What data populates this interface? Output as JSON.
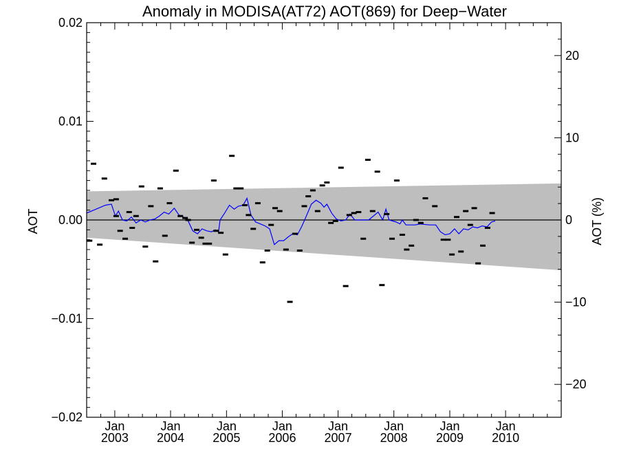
{
  "chart_data": {
    "type": "scatter",
    "title": "Anomaly in MODISA(AT72) AOT(869) for Deep−Water",
    "ylabel": "AOT",
    "ylabel_right": "AOT (%)",
    "xlabel": "",
    "x_range": [
      "2002-07-01",
      "2010-12-31"
    ],
    "ylim": [
      -0.02,
      0.02
    ],
    "ylim_right": [
      -24,
      24
    ],
    "y_ticks": [
      {
        "value": 0.02,
        "label": "0.02"
      },
      {
        "value": 0.01,
        "label": "0.01"
      },
      {
        "value": 0.0,
        "label": "0.00"
      },
      {
        "value": -0.01,
        "label": "−0.01"
      },
      {
        "value": -0.02,
        "label": "−0.02"
      }
    ],
    "y_ticks_right": [
      {
        "value": 20,
        "label": "20"
      },
      {
        "value": 10,
        "label": "10"
      },
      {
        "value": 0,
        "label": "0"
      },
      {
        "value": -10,
        "label": "−10"
      },
      {
        "value": -20,
        "label": "−20"
      }
    ],
    "x_ticks": [
      {
        "date": "2003-01-01",
        "month": "Jan",
        "year": "2003"
      },
      {
        "date": "2004-01-01",
        "month": "Jan",
        "year": "2004"
      },
      {
        "date": "2005-01-01",
        "month": "Jan",
        "year": "2005"
      },
      {
        "date": "2006-01-01",
        "month": "Jan",
        "year": "2006"
      },
      {
        "date": "2007-01-01",
        "month": "Jan",
        "year": "2007"
      },
      {
        "date": "2008-01-01",
        "month": "Jan",
        "year": "2008"
      },
      {
        "date": "2009-01-01",
        "month": "Jan",
        "year": "2009"
      },
      {
        "date": "2010-01-01",
        "month": "Jan",
        "year": "2010"
      }
    ],
    "band": {
      "color": "#bebebe",
      "upper": [
        [
          "2002-07-01",
          0.0029
        ],
        [
          "2010-12-31",
          0.0037
        ]
      ],
      "lower": [
        [
          "2002-07-01",
          -0.0018
        ],
        [
          "2010-12-31",
          -0.0051
        ]
      ]
    },
    "reference_line": {
      "y": 0.0,
      "color": "#000000"
    },
    "points_color": "#000000",
    "points": [
      [
        "2002-07-20",
        -0.0021
      ],
      [
        "2002-08-15",
        0.0057
      ],
      [
        "2002-09-25",
        -0.0025
      ],
      [
        "2002-10-25",
        0.0042
      ],
      [
        "2002-12-10",
        0.002
      ],
      [
        "2003-01-10",
        0.0021
      ],
      [
        "2003-01-10",
        0.0004
      ],
      [
        "2003-02-05",
        -0.0011
      ],
      [
        "2003-03-10",
        -0.0019
      ],
      [
        "2003-04-05",
        0.0008
      ],
      [
        "2003-04-25",
        -0.0008
      ],
      [
        "2003-05-20",
        0.0004
      ],
      [
        "2003-06-25",
        0.0034
      ],
      [
        "2003-07-20",
        -0.0027
      ],
      [
        "2003-08-25",
        0.0014
      ],
      [
        "2003-09-25",
        -0.0042
      ],
      [
        "2003-10-25",
        0.0032
      ],
      [
        "2003-11-25",
        -0.0016
      ],
      [
        "2003-12-25",
        0.0017
      ],
      [
        "2004-02-05",
        0.005
      ],
      [
        "2004-03-05",
        0.0004
      ],
      [
        "2004-04-05",
        0.0002
      ],
      [
        "2004-04-25",
        0.0
      ],
      [
        "2004-05-20",
        -0.0023
      ],
      [
        "2004-06-20",
        -0.001
      ],
      [
        "2004-07-20",
        -0.0018
      ],
      [
        "2004-08-15",
        -0.0024
      ],
      [
        "2004-09-10",
        -0.0024
      ],
      [
        "2004-10-10",
        0.004
      ],
      [
        "2004-10-25",
        -0.0011
      ],
      [
        "2004-11-25",
        -0.0013
      ],
      [
        "2004-12-25",
        -0.0035
      ],
      [
        "2005-02-05",
        0.0065
      ],
      [
        "2005-03-05",
        0.0032
      ],
      [
        "2005-04-05",
        0.0032
      ],
      [
        "2005-05-01",
        0.0015
      ],
      [
        "2005-05-25",
        0.0005
      ],
      [
        "2005-06-25",
        -0.0009
      ],
      [
        "2005-07-25",
        0.0017
      ],
      [
        "2005-08-25",
        -0.0043
      ],
      [
        "2005-09-25",
        -0.0031
      ],
      [
        "2005-10-20",
        -0.0005
      ],
      [
        "2005-11-15",
        0.0012
      ],
      [
        "2005-12-15",
        0.0009
      ],
      [
        "2006-01-25",
        -0.003
      ],
      [
        "2006-02-20",
        -0.0083
      ],
      [
        "2006-03-25",
        -0.0014
      ],
      [
        "2006-04-25",
        -0.0031
      ],
      [
        "2006-05-25",
        0.0014
      ],
      [
        "2006-06-20",
        0.0024
      ],
      [
        "2006-07-20",
        0.003
      ],
      [
        "2006-08-20",
        0.0009
      ],
      [
        "2006-09-20",
        0.0035
      ],
      [
        "2006-10-20",
        0.0038
      ],
      [
        "2006-11-15",
        -0.0003
      ],
      [
        "2006-12-15",
        -0.0001
      ],
      [
        "2007-01-20",
        0.0053
      ],
      [
        "2007-02-20",
        -0.0067
      ],
      [
        "2007-03-15",
        0.0005
      ],
      [
        "2007-04-15",
        0.0007
      ],
      [
        "2007-05-15",
        0.0008
      ],
      [
        "2007-06-15",
        -0.0019
      ],
      [
        "2007-07-15",
        0.0061
      ],
      [
        "2007-08-15",
        0.0009
      ],
      [
        "2007-09-15",
        0.0049
      ],
      [
        "2007-10-15",
        -0.0066
      ],
      [
        "2007-11-15",
        0.0006
      ],
      [
        "2007-12-20",
        -0.0019
      ],
      [
        "2008-01-20",
        0.004
      ],
      [
        "2008-02-25",
        -0.0015
      ],
      [
        "2008-03-25",
        -0.003
      ],
      [
        "2008-04-25",
        -0.0026
      ],
      [
        "2008-05-25",
        0.0
      ],
      [
        "2008-06-25",
        -0.0003
      ],
      [
        "2008-07-25",
        0.0022
      ],
      [
        "2008-09-25",
        0.0014
      ],
      [
        "2008-11-20",
        -0.002
      ],
      [
        "2008-12-20",
        -0.002
      ],
      [
        "2009-01-15",
        -0.0035
      ],
      [
        "2009-02-15",
        0.0003
      ],
      [
        "2009-03-15",
        -0.0032
      ],
      [
        "2009-04-15",
        0.0009
      ],
      [
        "2009-05-15",
        -0.0005
      ],
      [
        "2009-06-10",
        0.0012
      ],
      [
        "2009-07-05",
        -0.0044
      ],
      [
        "2009-08-05",
        -0.0026
      ],
      [
        "2009-09-05",
        -0.0008
      ],
      [
        "2009-10-05",
        0.0007
      ]
    ],
    "line_color": "#0000ff",
    "line": [
      [
        "2002-07-01",
        0.0007
      ],
      [
        "2002-09-01",
        0.0011
      ],
      [
        "2002-11-01",
        0.0015
      ],
      [
        "2002-12-10",
        0.0016
      ],
      [
        "2003-01-05",
        0.0004
      ],
      [
        "2003-01-25",
        0.0009
      ],
      [
        "2003-02-20",
        0.0
      ],
      [
        "2003-03-20",
        -0.0001
      ],
      [
        "2003-04-20",
        0.0003
      ],
      [
        "2003-05-20",
        -0.0003
      ],
      [
        "2003-06-20",
        0.0
      ],
      [
        "2003-07-20",
        -0.0002
      ],
      [
        "2003-08-20",
        0.0
      ],
      [
        "2003-09-20",
        0.0001
      ],
      [
        "2003-10-20",
        0.0004
      ],
      [
        "2003-11-20",
        0.0008
      ],
      [
        "2003-12-20",
        0.0006
      ],
      [
        "2004-01-25",
        0.0012
      ],
      [
        "2004-02-25",
        0.0005
      ],
      [
        "2004-03-25",
        0.0003
      ],
      [
        "2004-04-25",
        -0.0001
      ],
      [
        "2004-05-25",
        -0.0011
      ],
      [
        "2004-06-25",
        -0.0014
      ],
      [
        "2004-07-25",
        -0.0009
      ],
      [
        "2004-08-25",
        -0.0011
      ],
      [
        "2004-09-25",
        -0.0012
      ],
      [
        "2004-10-20",
        -0.001
      ],
      [
        "2004-11-10",
        -0.0012
      ],
      [
        "2004-11-20",
        0.0
      ],
      [
        "2004-12-20",
        0.0007
      ],
      [
        "2005-01-20",
        0.0015
      ],
      [
        "2005-02-20",
        0.0011
      ],
      [
        "2005-03-20",
        0.0014
      ],
      [
        "2005-04-20",
        0.0015
      ],
      [
        "2005-05-15",
        0.0022
      ],
      [
        "2005-06-10",
        0.0005
      ],
      [
        "2005-07-10",
        -0.0002
      ],
      [
        "2005-08-10",
        -0.0004
      ],
      [
        "2005-09-10",
        -0.0006
      ],
      [
        "2005-10-10",
        -0.0009
      ],
      [
        "2005-11-10",
        -0.0025
      ],
      [
        "2005-12-10",
        -0.0021
      ],
      [
        "2006-01-10",
        -0.0021
      ],
      [
        "2006-02-10",
        -0.0017
      ],
      [
        "2006-03-10",
        -0.0014
      ],
      [
        "2006-04-10",
        -0.0015
      ],
      [
        "2006-05-10",
        -0.0006
      ],
      [
        "2006-06-10",
        0.0005
      ],
      [
        "2006-07-10",
        0.0016
      ],
      [
        "2006-08-10",
        0.002
      ],
      [
        "2006-09-10",
        0.0017
      ],
      [
        "2006-10-01",
        0.0013
      ],
      [
        "2006-10-20",
        0.0016
      ],
      [
        "2006-11-20",
        0.0007
      ],
      [
        "2006-12-20",
        0.0001
      ],
      [
        "2007-01-20",
        -0.0001
      ],
      [
        "2007-02-20",
        0.0
      ],
      [
        "2007-03-20",
        0.0006
      ],
      [
        "2007-04-20",
        0.0
      ],
      [
        "2007-05-20",
        0.0
      ],
      [
        "2007-06-20",
        0.0
      ],
      [
        "2007-07-20",
        0.0
      ],
      [
        "2007-09-20",
        0.0008
      ],
      [
        "2007-10-20",
        0.0
      ],
      [
        "2007-11-10",
        0.0011
      ],
      [
        "2007-12-01",
        0.0
      ],
      [
        "2008-01-15",
        -0.0002
      ],
      [
        "2008-02-10",
        -0.0004
      ],
      [
        "2008-02-25",
        0.0
      ],
      [
        "2008-03-20",
        -0.0005
      ],
      [
        "2008-04-20",
        -0.0005
      ],
      [
        "2008-05-20",
        -0.0005
      ],
      [
        "2008-06-20",
        -0.0004
      ],
      [
        "2008-08-20",
        -0.0005
      ],
      [
        "2008-10-01",
        -0.0005
      ],
      [
        "2008-11-01",
        -0.0012
      ],
      [
        "2008-12-01",
        -0.0015
      ],
      [
        "2009-01-01",
        -0.0014
      ],
      [
        "2009-02-01",
        -0.0009
      ],
      [
        "2009-03-01",
        -0.0014
      ],
      [
        "2009-04-01",
        -0.0009
      ],
      [
        "2009-05-01",
        -0.001
      ],
      [
        "2009-06-01",
        -0.0007
      ],
      [
        "2009-07-01",
        -0.0008
      ],
      [
        "2009-08-01",
        -0.0006
      ],
      [
        "2009-09-01",
        -0.0007
      ],
      [
        "2009-10-01",
        -0.0002
      ],
      [
        "2009-10-25",
        -0.0001
      ]
    ]
  }
}
